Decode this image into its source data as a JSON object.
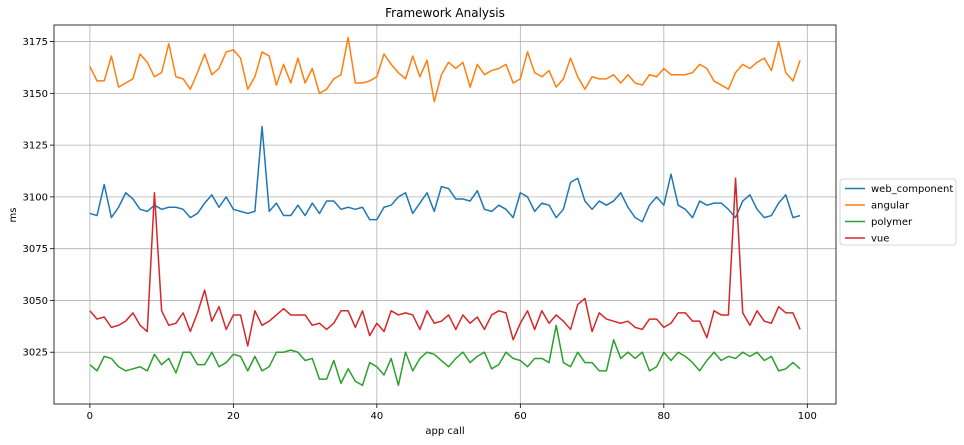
{
  "chart_data": {
    "type": "line",
    "title": "Framework Analysis",
    "xlabel": "app call",
    "ylabel": "ms",
    "xlim": [
      -5,
      104
    ],
    "ylim": [
      3000,
      3183
    ],
    "xticks": [
      0,
      20,
      40,
      60,
      80,
      100
    ],
    "yticks": [
      3025,
      3050,
      3075,
      3100,
      3125,
      3150,
      3175
    ],
    "xtick_labels": [
      "0",
      "20",
      "40",
      "60",
      "80",
      "100"
    ],
    "ytick_labels": [
      "3025",
      "3050",
      "3075",
      "3100",
      "3125",
      "3150",
      "3175"
    ],
    "grid": true,
    "legend_position": "right",
    "series": [
      {
        "name": "web_component",
        "color": "#1f77b4",
        "values": [
          3092,
          3091,
          3106,
          3090,
          3095,
          3102,
          3099,
          3094,
          3093,
          3096,
          3094,
          3095,
          3095,
          3094,
          3090,
          3092,
          3097,
          3101,
          3095,
          3100,
          3094,
          3093,
          3092,
          3093,
          3134,
          3093,
          3097,
          3091,
          3091,
          3096,
          3091,
          3097,
          3092,
          3098,
          3098,
          3094,
          3095,
          3094,
          3095,
          3089,
          3089,
          3095,
          3096,
          3100,
          3102,
          3092,
          3097,
          3102,
          3093,
          3105,
          3104,
          3099,
          3099,
          3098,
          3103,
          3094,
          3093,
          3096,
          3094,
          3090,
          3102,
          3100,
          3093,
          3097,
          3096,
          3090,
          3094,
          3107,
          3109,
          3098,
          3094,
          3098,
          3096,
          3098,
          3102,
          3095,
          3090,
          3088,
          3096,
          3100,
          3096,
          3111,
          3096,
          3094,
          3090,
          3098,
          3096,
          3097,
          3097,
          3094,
          3090,
          3098,
          3101,
          3094,
          3090,
          3091,
          3097,
          3101,
          3090,
          3091
        ]
      },
      {
        "name": "angular",
        "color": "#ff7f0e",
        "values": [
          3163,
          3156,
          3156,
          3168,
          3153,
          3155,
          3157,
          3169,
          3165,
          3158,
          3160,
          3174,
          3158,
          3157,
          3152,
          3160,
          3169,
          3159,
          3162,
          3170,
          3171,
          3167,
          3152,
          3158,
          3170,
          3168,
          3154,
          3164,
          3155,
          3167,
          3155,
          3162,
          3150,
          3152,
          3157,
          3159,
          3177,
          3155,
          3155,
          3156,
          3158,
          3169,
          3164,
          3160,
          3157,
          3168,
          3158,
          3166,
          3146,
          3159,
          3165,
          3162,
          3165,
          3153,
          3164,
          3159,
          3161,
          3162,
          3164,
          3155,
          3157,
          3170,
          3160,
          3158,
          3161,
          3153,
          3157,
          3167,
          3158,
          3152,
          3158,
          3157,
          3157,
          3159,
          3155,
          3159,
          3155,
          3154,
          3159,
          3158,
          3162,
          3159,
          3159,
          3159,
          3160,
          3164,
          3162,
          3156,
          3154,
          3152,
          3160,
          3164,
          3162,
          3165,
          3167,
          3161,
          3175,
          3160,
          3156,
          3166
        ]
      },
      {
        "name": "polymer",
        "color": "#2ca02c",
        "values": [
          3019,
          3016,
          3023,
          3022,
          3018,
          3016,
          3017,
          3018,
          3016,
          3024,
          3019,
          3022,
          3015,
          3025,
          3025,
          3019,
          3019,
          3025,
          3018,
          3020,
          3024,
          3023,
          3016,
          3023,
          3016,
          3018,
          3025,
          3025,
          3026,
          3025,
          3021,
          3022,
          3012,
          3012,
          3021,
          3010,
          3017,
          3011,
          3009,
          3020,
          3018,
          3014,
          3022,
          3009,
          3025,
          3016,
          3022,
          3025,
          3024,
          3021,
          3018,
          3022,
          3025,
          3020,
          3023,
          3025,
          3017,
          3019,
          3025,
          3022,
          3021,
          3018,
          3022,
          3022,
          3020,
          3038,
          3020,
          3018,
          3025,
          3020,
          3020,
          3016,
          3016,
          3031,
          3022,
          3025,
          3022,
          3025,
          3016,
          3018,
          3025,
          3021,
          3025,
          3023,
          3020,
          3016,
          3021,
          3025,
          3021,
          3023,
          3022,
          3025,
          3023,
          3025,
          3021,
          3023,
          3016,
          3017,
          3020,
          3017
        ]
      },
      {
        "name": "vue",
        "color": "#d62728",
        "values": [
          3045,
          3041,
          3042,
          3037,
          3038,
          3040,
          3044,
          3038,
          3035,
          3102,
          3045,
          3038,
          3039,
          3044,
          3035,
          3044,
          3055,
          3040,
          3047,
          3036,
          3043,
          3043,
          3028,
          3045,
          3038,
          3040,
          3043,
          3046,
          3043,
          3043,
          3043,
          3038,
          3039,
          3036,
          3039,
          3045,
          3045,
          3037,
          3045,
          3033,
          3039,
          3035,
          3045,
          3043,
          3044,
          3043,
          3036,
          3045,
          3039,
          3040,
          3043,
          3036,
          3043,
          3039,
          3042,
          3036,
          3043,
          3045,
          3044,
          3031,
          3039,
          3045,
          3036,
          3045,
          3039,
          3043,
          3040,
          3036,
          3048,
          3051,
          3035,
          3044,
          3041,
          3040,
          3039,
          3040,
          3037,
          3036,
          3041,
          3041,
          3037,
          3039,
          3044,
          3044,
          3040,
          3040,
          3032,
          3045,
          3043,
          3043,
          3109,
          3044,
          3038,
          3045,
          3040,
          3039,
          3047,
          3044,
          3044,
          3036
        ]
      }
    ]
  }
}
